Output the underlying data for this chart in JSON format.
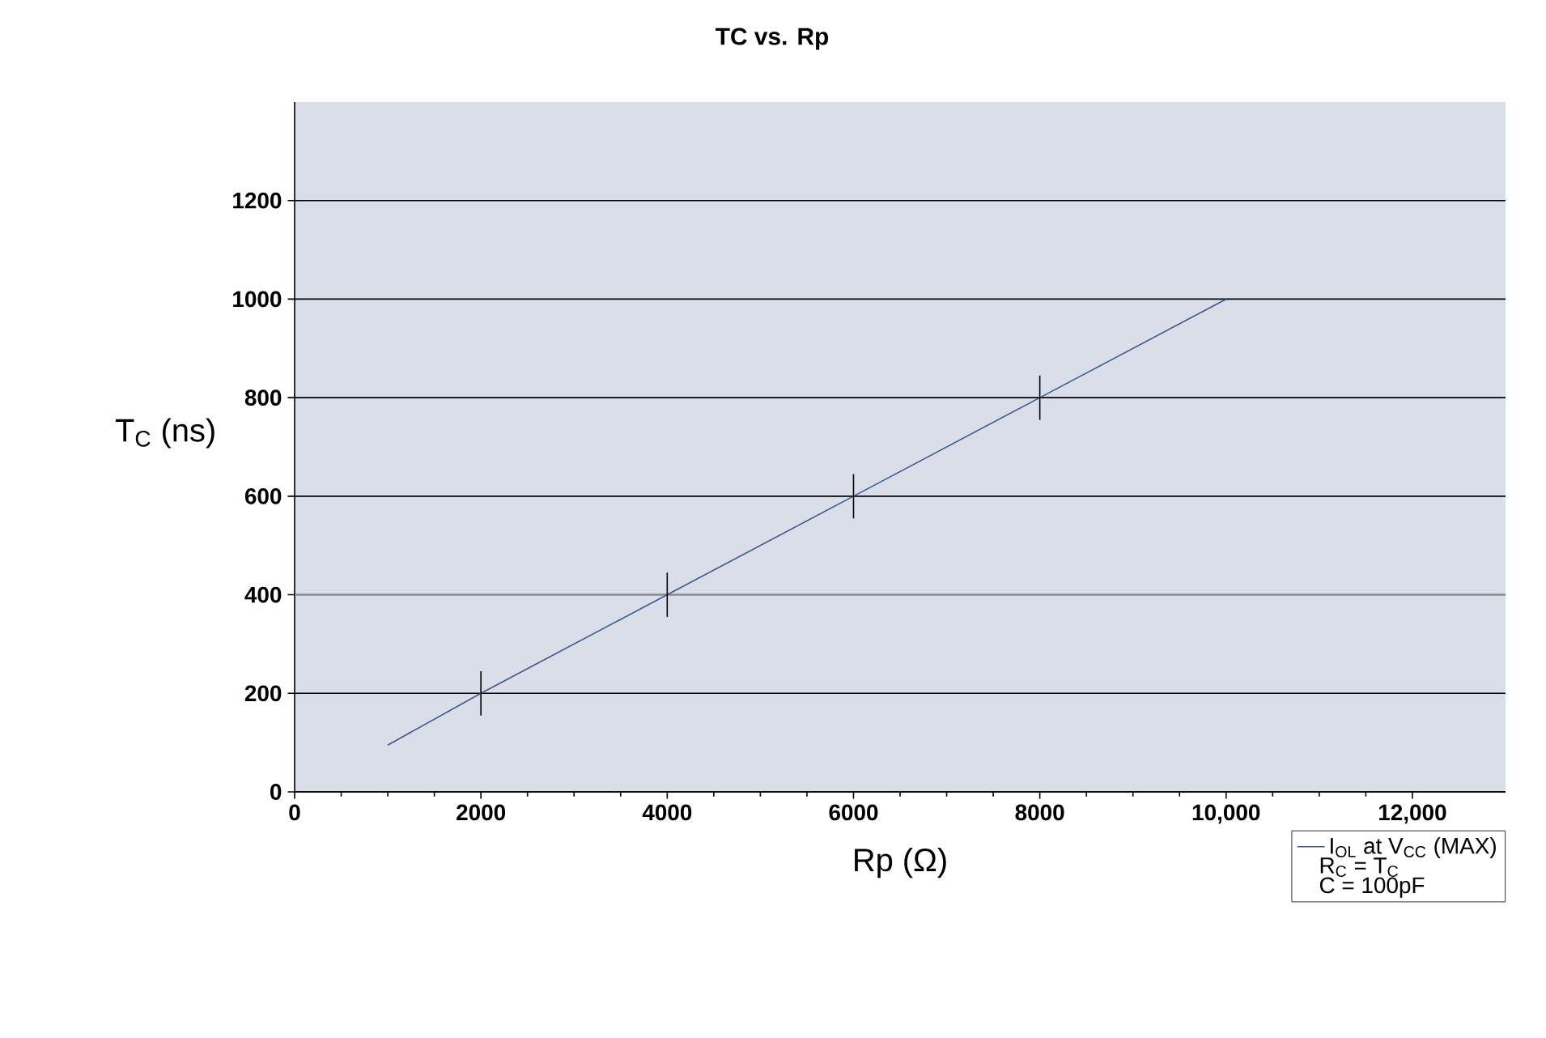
{
  "chart_data": {
    "type": "line",
    "title": "TC vs. Rp",
    "xlabel": "Rp (Ω)",
    "ylabel": "T$_{C}$ (ns)",
    "xlim": [
      0,
      13000
    ],
    "ylim": [
      0,
      1400
    ],
    "xticks": [
      0,
      2000,
      4000,
      6000,
      8000,
      {
        "value": 10000,
        "label": "10,000"
      },
      {
        "value": 12000,
        "label": "12,000"
      }
    ],
    "yticks": [
      0,
      200,
      400,
      600,
      800,
      1000,
      1200
    ],
    "grid": "y",
    "legend": "bottom right",
    "marker": "none",
    "line_style": "solid",
    "series": [
      {
        "name": "I$_{OL}$ at V$_{CC}$ (MAX)",
        "color": "#3b5a8c",
        "x": [
          1000,
          2000,
          4000,
          6000,
          8000,
          10000
        ],
        "values": [
          95,
          200,
          400,
          600,
          800,
          1000
        ],
        "errors": [
          null,
          45,
          45,
          45,
          45,
          null
        ]
      }
    ],
    "ref_lines": [
      {
        "axis": "y",
        "value": 400,
        "color": "#8c8c8c"
      }
    ],
    "annotations": [
      "R$_{C}$ = T$_{C}$",
      "C = 100pF"
    ]
  }
}
